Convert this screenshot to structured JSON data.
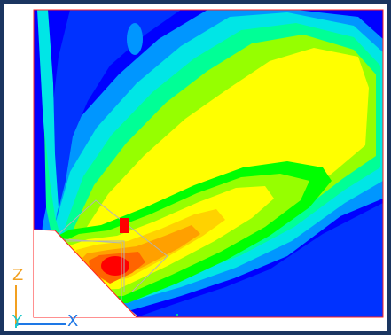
{
  "viewport": {
    "background": "#ffffff",
    "frame_color": "#ff2020",
    "mesh_color": "#b4b4b4"
  },
  "axes": {
    "z_label": "Z",
    "y_label": "Y",
    "x_label": "X",
    "z_color": "#f2a020",
    "y_color": "#1ec8c8",
    "x_color": "#1e78e6"
  },
  "contour": {
    "palette": [
      "#0000ff",
      "#0032ff",
      "#0096ff",
      "#00e6e6",
      "#00ff96",
      "#00ff00",
      "#96ff00",
      "#ffff00",
      "#ffd200",
      "#ffa000",
      "#ff6400",
      "#ff0000"
    ],
    "source_marker_color": "#ff0000"
  }
}
